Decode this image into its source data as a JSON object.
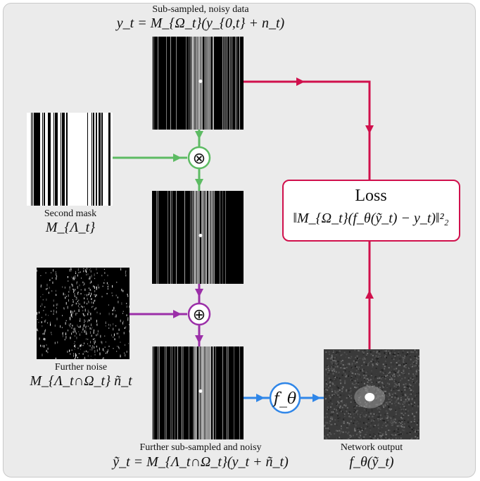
{
  "top_image": {
    "title": "Sub-sampled, noisy data",
    "formula": "y_t = M_{Ω_t}(y_{0,t} + n_t)"
  },
  "second_mask": {
    "title": "Second mask",
    "formula": "M_{Λ_t}"
  },
  "further_noise": {
    "title": "Further noise",
    "formula": "M_{Λ_t∩Ω_t} ñ_t"
  },
  "bottom_image": {
    "title": "Further sub-sampled and noisy",
    "formula": "ỹ_t = M_{Λ_t∩Ω_t}(y_t + ñ_t)"
  },
  "network": {
    "symbol": "f_θ",
    "output_title": "Network output",
    "output_formula": "f_θ(ỹ_t)"
  },
  "loss": {
    "title": "Loss",
    "formula": "‖M_{Ω_t}(f_θ(ỹ_t) − y_t)‖²₂"
  },
  "operators": {
    "multiply": "⊗",
    "add": "⊕"
  },
  "colors": {
    "green": "#5dbb63",
    "purple": "#9b2fa8",
    "blue": "#2f86e8",
    "red": "#d0104c"
  }
}
